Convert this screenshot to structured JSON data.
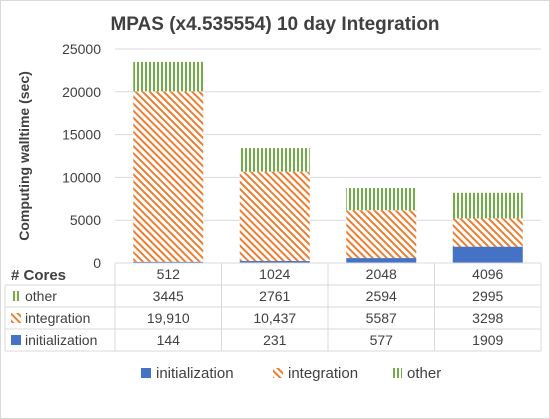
{
  "chart_data": {
    "type": "bar",
    "stacked": true,
    "title": "MPAS (x4.535554) 10 day Integration",
    "xlabel": "",
    "ylabel": "Computing walltime (sec)",
    "ylim": [
      0,
      25000
    ],
    "yticks": [
      0,
      5000,
      10000,
      15000,
      20000,
      25000
    ],
    "grid": true,
    "legend_position": "bottom",
    "table_header": "# Cores",
    "categories": [
      "512",
      "1024",
      "2048",
      "4096"
    ],
    "series": [
      {
        "name": "initialization",
        "values": [
          144,
          231,
          577,
          1909
        ],
        "labels": [
          "144",
          "231",
          "577",
          "1909"
        ],
        "color": "#4472c4",
        "pattern": "solid"
      },
      {
        "name": "integration",
        "values": [
          19910,
          10437,
          5587,
          3298
        ],
        "labels": [
          "19,910",
          "10,437",
          "5587",
          "3298"
        ],
        "color": "#ed7d31",
        "pattern": "diagonal-hatch"
      },
      {
        "name": "other",
        "values": [
          3445,
          2761,
          2594,
          2995
        ],
        "labels": [
          "3445",
          "2761",
          "2594",
          "2995"
        ],
        "color": "#70ad47",
        "pattern": "vertical-lines"
      }
    ],
    "table_row_order": [
      "other",
      "integration",
      "initialization"
    ],
    "legend_order": [
      "initialization",
      "integration",
      "other"
    ]
  }
}
